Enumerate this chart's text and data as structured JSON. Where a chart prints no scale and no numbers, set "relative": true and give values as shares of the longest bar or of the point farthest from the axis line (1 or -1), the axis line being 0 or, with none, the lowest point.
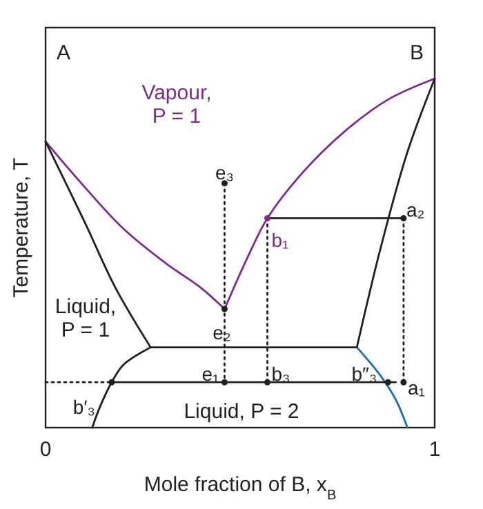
{
  "chart_data": {
    "type": "line",
    "relative": true,
    "xlabel": "Mole fraction of B, x$_{B}$",
    "ylabel": "Temperature, T",
    "xlim": [
      0,
      1
    ],
    "xticks": [
      0,
      1
    ],
    "tick_labels": "x",
    "grid": false,
    "series": [
      {
        "color": "#7b2d8e",
        "x": [
          0,
          0.1,
          0.2,
          0.31,
          0.4,
          0.46
        ],
        "values": [
          0.82,
          0.69,
          0.57,
          0.47,
          0.4,
          0.34
        ]
      },
      {
        "color": "#7b2d8e",
        "x": [
          0.46,
          0.52,
          0.57,
          0.66,
          0.77,
          0.88,
          1
        ],
        "values": [
          0.34,
          0.49,
          0.6,
          0.73,
          0.85,
          0.94,
          1
        ]
      },
      {
        "color": "#231f20",
        "x": [
          0,
          0.1,
          0.18,
          0.27
        ],
        "values": [
          0.82,
          0.59,
          0.4,
          0.23
        ]
      },
      {
        "color": "#231f20",
        "x": [
          0.27,
          0.2,
          0.17,
          0.14,
          0.12
        ],
        "values": [
          0.23,
          0.18,
          0.13,
          0.06,
          0
        ]
      },
      {
        "color": "#231f20",
        "x": [
          1,
          0.93,
          0.86,
          0.8
        ],
        "values": [
          1,
          0.79,
          0.51,
          0.23
        ]
      },
      {
        "color": "#1f6fb5",
        "x": [
          0.8,
          0.86,
          0.9,
          0.93
        ],
        "values": [
          0.23,
          0.15,
          0.08,
          0
        ]
      },
      {
        "color": "#231f20",
        "x": [
          0.27,
          0.8
        ],
        "values": [
          0.23,
          0.23
        ]
      },
      {
        "color": "#231f20",
        "x": [
          0.17,
          0.9
        ],
        "values": [
          0.13,
          0.13
        ]
      },
      {
        "color": "#231f20",
        "x": [
          0.57,
          0.92
        ],
        "values": [
          0.6,
          0.6
        ]
      },
      {
        "color": "#231f20",
        "line_style": "dotted",
        "x": [
          0,
          0.17
        ],
        "values": [
          0.13,
          0.13
        ]
      },
      {
        "color": "#231f20",
        "line_style": "dotted",
        "x": [
          0.46,
          0.46
        ],
        "values": [
          0.7,
          0.13
        ]
      },
      {
        "color": "#231f20",
        "line_style": "dotted",
        "x": [
          0.57,
          0.57
        ],
        "values": [
          0.6,
          0.13
        ]
      },
      {
        "color": "#231f20",
        "line_style": "dotted",
        "x": [
          0.92,
          0.92
        ],
        "values": [
          0.6,
          0.13
        ]
      },
      {
        "type": "scatter",
        "marker": "circle",
        "color": "#231f20",
        "x": [
          0.46,
          0.92,
          0.46,
          0.46,
          0.57,
          0.88,
          0.92,
          0.17
        ],
        "values": [
          0.7,
          0.6,
          0.34,
          0.13,
          0.13,
          0.13,
          0.13,
          0.13
        ]
      },
      {
        "type": "scatter",
        "marker": "circle",
        "color": "#7b2d8e",
        "x": [
          0.57
        ],
        "values": [
          0.6
        ]
      }
    ],
    "annotations": [
      "A",
      "B",
      "Vapour,\nP = 1",
      "Liquid,\nP = 1",
      "Liquid, P = 2",
      {
        "text": "e₃",
        "x": 0.46,
        "y": 0.7
      },
      {
        "text": "b₁",
        "x": 0.57,
        "y": 0.6
      },
      {
        "text": "a₂",
        "x": 0.92,
        "y": 0.6
      },
      {
        "text": "e₂",
        "x": 0.46,
        "y": 0.34
      },
      {
        "text": "e₁",
        "x": 0.46,
        "y": 0.13
      },
      {
        "text": "b₃",
        "x": 0.57,
        "y": 0.13
      },
      {
        "text": "b″₃",
        "x": 0.88,
        "y": 0.13
      },
      {
        "text": "a₁",
        "x": 0.92,
        "y": 0.13
      },
      {
        "text": "b′₃",
        "x": 0.17,
        "y": 0.13
      }
    ]
  }
}
